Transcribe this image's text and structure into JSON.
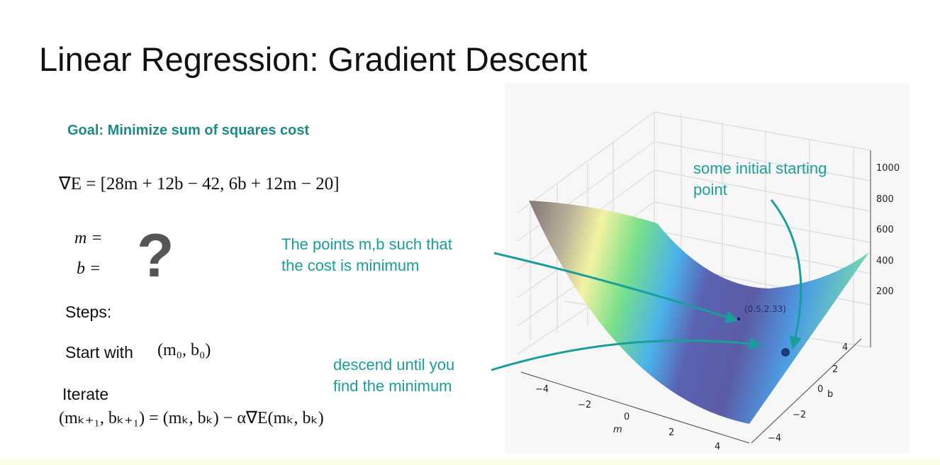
{
  "title": "Linear Regression: Gradient Descent",
  "goal": "Goal: Minimize sum of squares cost",
  "gradient_formula": "∇E = [28m + 12b − 42,  6b + 12m − 20]",
  "m_eq": "m =",
  "b_eq": "b =",
  "unknown_mark": "?",
  "steps_label": "Steps:",
  "start_label": "Start with",
  "start_formula": "(m₀, b₀)",
  "iterate_label": "Iterate",
  "iterate_formula": "(mₖ₊₁, bₖ₊₁) = (mₖ, bₖ) − α∇E(mₖ, bₖ)",
  "annotations": {
    "minimum_points": [
      "The points m,b such that",
      "the cost is minimum"
    ],
    "descend": [
      "descend until you",
      "find the minimum"
    ],
    "initial_point": [
      "some initial starting",
      "point"
    ]
  },
  "plot": {
    "type": "3d-surface",
    "x_label": "m",
    "y_label": "b",
    "x_ticks": [
      "−4",
      "−2",
      "0",
      "2",
      "4"
    ],
    "y_ticks": [
      "4",
      "2",
      "0",
      "−2",
      "−4"
    ],
    "z_ticks": [
      "1000",
      "800",
      "600",
      "400",
      "200"
    ],
    "minimum_label": "(0.5,2.33)",
    "colors": {
      "arrow": "#1a9e9b",
      "point": "#1b3a7a",
      "colormap": "terrain"
    }
  }
}
